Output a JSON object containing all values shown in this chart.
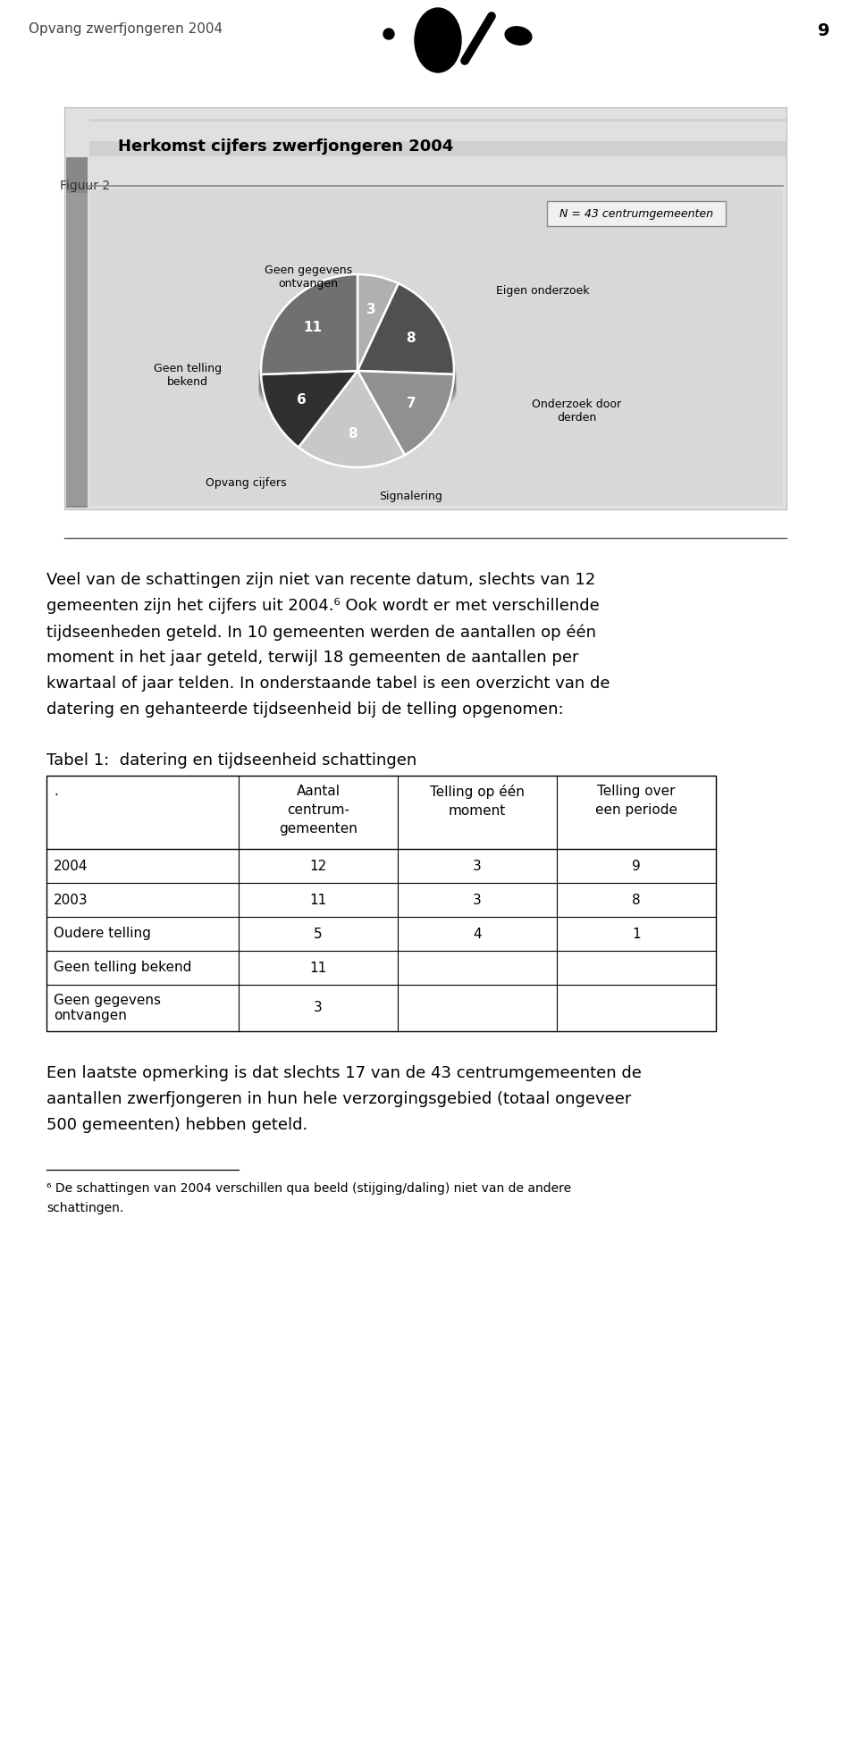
{
  "header_text": "Opvang zwerfjongeren 2004",
  "page_number": "9",
  "figure_label": "Figuur 2",
  "figure_title": "Herkomst cijfers zwerfjongeren 2004",
  "pie_note": "N = 43 centrumgemeenten",
  "pie_slices": [
    3,
    8,
    7,
    8,
    6,
    11
  ],
  "pie_labels": [
    "Geen gegevens\nontvangen",
    "Eigen onderzoek",
    "Onderzoek door\nderden",
    "Signalering",
    "Opvang cijfers",
    "Geen telling\nbekend"
  ],
  "slice_colors": [
    "#b0b0b0",
    "#505050",
    "#909090",
    "#c8c8c8",
    "#303030",
    "#707070"
  ],
  "table_title": "Tabel 1:  datering en tijdseenheid schattingen",
  "table_headers": [
    ".",
    "Aantal\ncentrum-\ngemeenten",
    "Telling op één\nmoment",
    "Telling over\neen periode"
  ],
  "table_rows": [
    [
      "2004",
      "12",
      "3",
      "9"
    ],
    [
      "2003",
      "11",
      "3",
      "8"
    ],
    [
      "Oudere telling",
      "5",
      "4",
      "1"
    ],
    [
      "Geen telling bekend",
      "11",
      "",
      ""
    ],
    [
      "Geen gegevens\nontvangen",
      "3",
      "",
      ""
    ]
  ],
  "para1_lines": [
    "Veel van de schattingen zijn niet van recente datum, slechts van 12",
    "gemeenten zijn het cijfers uit 2004.⁶ Ook wordt er met verschillende",
    "tijdseenheden geteld. In 10 gemeenten werden de aantallen op één",
    "moment in het jaar geteld, terwijl 18 gemeenten de aantallen per",
    "kwartaal of jaar telden. In onderstaande tabel is een overzicht van de",
    "datering en gehanteerde tijdseenheid bij de telling opgenomen:"
  ],
  "para2_lines": [
    "Een laatste opmerking is dat slechts 17 van de 43 centrumgemeenten de",
    "aantallen zwerfjongeren in hun hele verzorgingsgebied (totaal ongeveer",
    "500 gemeenten) hebben geteld."
  ],
  "footnote_lines": [
    "⁶ De schattingen van 2004 verschillen qua beeld (stijging/daling) niet van de andere",
    "schattingen."
  ],
  "bg_color": "#ffffff",
  "text_color": "#000000"
}
